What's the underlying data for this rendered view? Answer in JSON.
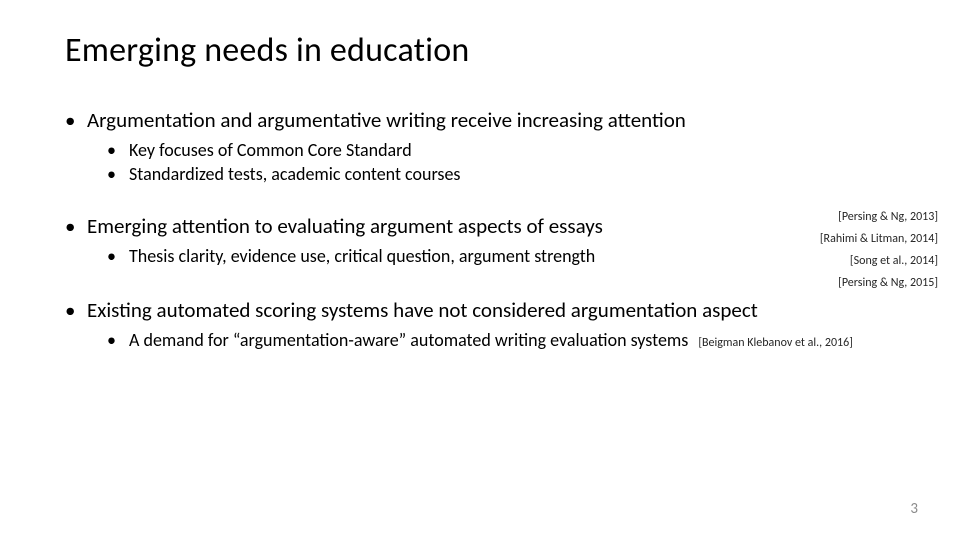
{
  "title": "Emerging needs in education",
  "bullets": {
    "b1": {
      "text": "Argumentation and argumentative writing receive increasing attention",
      "sub": {
        "s1": "Key focuses of Common Core Standard",
        "s2": "Standardized tests, academic content courses"
      }
    },
    "b2": {
      "text": "Emerging attention to evaluating argument aspects of essays",
      "sub": {
        "s1": "Thesis clarity, evidence use, critical question, argument strength"
      }
    },
    "b3": {
      "text": "Existing automated scoring systems have not considered argumentation aspect",
      "sub": {
        "s1": "A demand for “argumentation-aware” automated writing evaluation systems"
      }
    }
  },
  "citations": {
    "c1": "[Persing & Ng, 2013]",
    "c2": "[Rahimi & Litman, 2014]",
    "c3": "[Song et al., 2014]",
    "c4": "[Persing & Ng, 2015]",
    "c5": "[Beigman Klebanov et al., 2016]"
  },
  "page_number": "3"
}
